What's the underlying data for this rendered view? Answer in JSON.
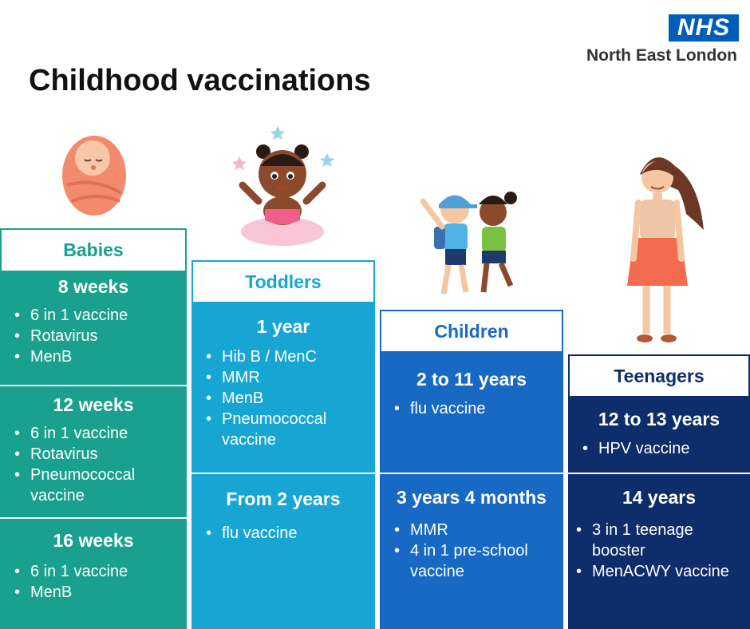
{
  "title": "Childhood vaccinations",
  "logo": {
    "badge": "NHS",
    "subtitle": "North East London"
  },
  "colors": {
    "babies": "#1aa08f",
    "toddlers": "#17a6d3",
    "children": "#1769c4",
    "teenagers": "#0d2d6b"
  },
  "columns": [
    {
      "header": "Babies",
      "sections": [
        {
          "heading": "8 weeks",
          "items": [
            "6 in 1 vaccine",
            "Rotavirus",
            "MenB"
          ]
        },
        {
          "heading": "12 weeks",
          "items": [
            "6 in 1 vaccine",
            "Rotavirus",
            "Pneumococcal vaccine"
          ]
        },
        {
          "heading": "16 weeks",
          "items": [
            "6 in 1 vaccine",
            "MenB"
          ]
        }
      ]
    },
    {
      "header": "Toddlers",
      "sections": [
        {
          "heading": "1 year",
          "items": [
            "Hib B / MenC",
            "MMR",
            "MenB",
            "Pneumococcal vaccine"
          ]
        },
        {
          "heading": "From 2 years",
          "items": [
            "flu vaccine"
          ]
        }
      ]
    },
    {
      "header": "Children",
      "sections": [
        {
          "heading": "2 to 11 years",
          "items": [
            "flu vaccine"
          ]
        },
        {
          "heading": "3 years 4 months",
          "items": [
            "MMR",
            "4 in 1 pre-school vaccine"
          ]
        }
      ]
    },
    {
      "header": "Teenagers",
      "sections": [
        {
          "heading": "12 to 13 years",
          "items": [
            "HPV vaccine"
          ]
        },
        {
          "heading": "14 years",
          "items": [
            "3 in 1 teenage booster",
            "MenACWY vaccine"
          ]
        }
      ]
    }
  ]
}
